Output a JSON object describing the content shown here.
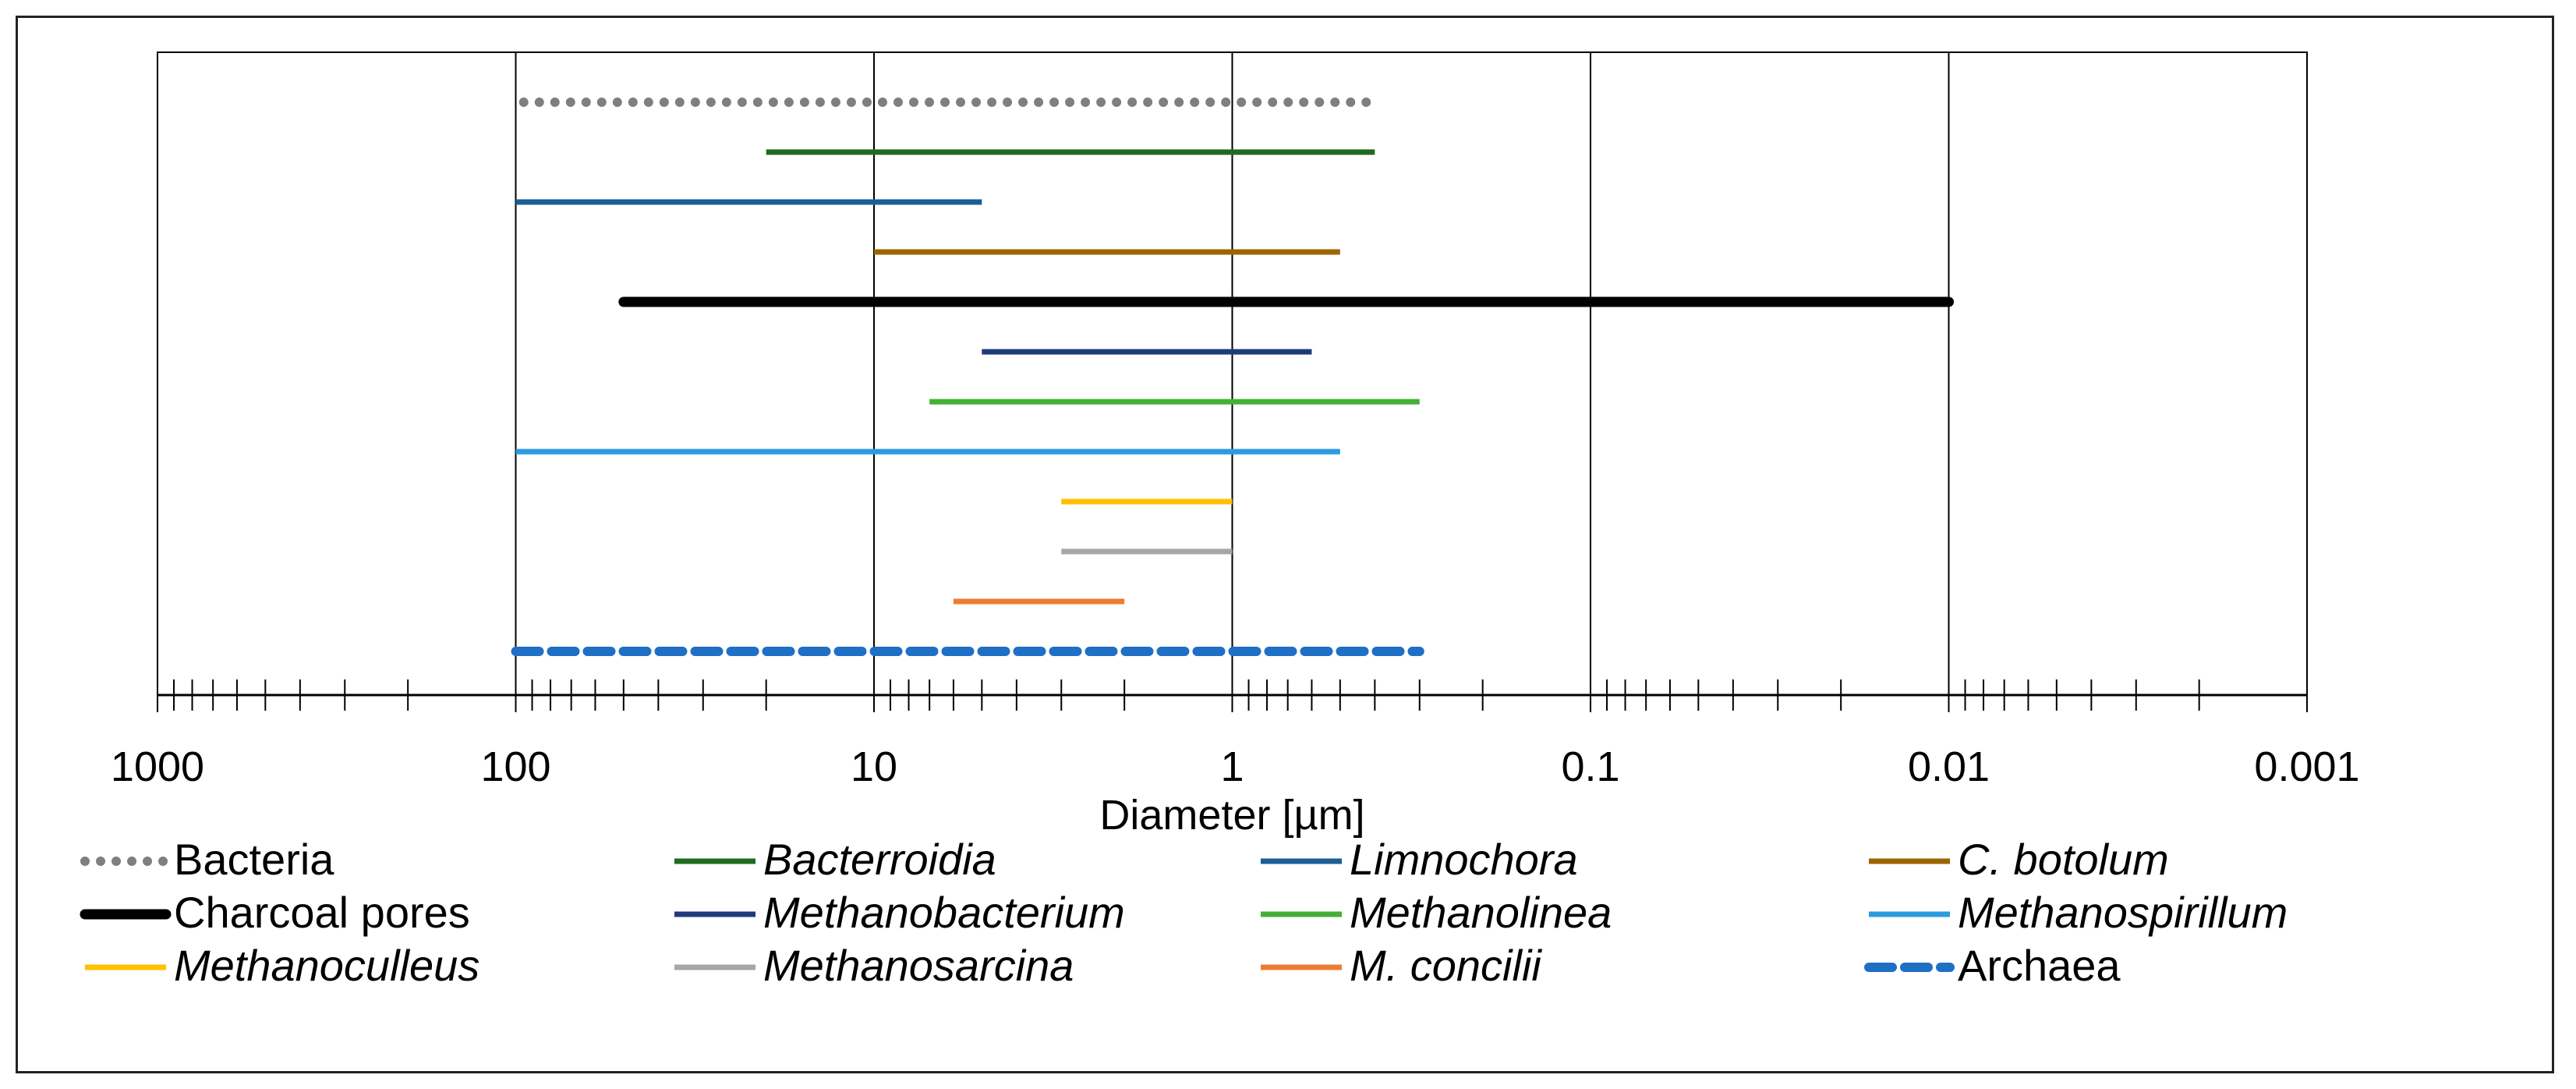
{
  "chart_data": {
    "type": "range",
    "xlabel": "Diameter [µm]",
    "x_scale": "log",
    "x_reversed": true,
    "xlim": [
      1000,
      0.001
    ],
    "major_ticks": [
      1000,
      100,
      10,
      1,
      0.1,
      0.01,
      0.001
    ],
    "tick_labels": [
      "1000",
      "100",
      "10",
      "1",
      "0.1",
      "0.01",
      "0.001"
    ],
    "grid": "vertical major",
    "legend_position": "bottom",
    "series": [
      {
        "name": "Bacteria",
        "italic": false,
        "color": "#7f7f7f",
        "style": "dotted",
        "min": 0.4,
        "max": 95
      },
      {
        "name": "Bacterroidia",
        "italic": true,
        "color": "#1f6b1f",
        "style": "solid",
        "min": 0.4,
        "max": 20
      },
      {
        "name": "Limnochora",
        "italic": true,
        "color": "#1a5e96",
        "style": "solid",
        "min": 5,
        "max": 100
      },
      {
        "name": "C. botolum",
        "italic": true,
        "color": "#9c6500",
        "style": "solid",
        "min": 0.5,
        "max": 10
      },
      {
        "name": "Charcoal pores",
        "italic": false,
        "color": "#000000",
        "style": "thick",
        "min": 0.01,
        "max": 50
      },
      {
        "name": "Methanobacterium",
        "italic": true,
        "color": "#1f3a78",
        "style": "solid",
        "min": 0.6,
        "max": 5
      },
      {
        "name": "Methanolinea",
        "italic": true,
        "color": "#45b036",
        "style": "solid",
        "min": 0.3,
        "max": 7
      },
      {
        "name": "Methanospirillum",
        "italic": true,
        "color": "#2a9be0",
        "style": "solid",
        "min": 0.5,
        "max": 100
      },
      {
        "name": "Methanoculleus",
        "italic": true,
        "color": "#ffc000",
        "style": "solid",
        "min": 1,
        "max": 3
      },
      {
        "name": "Methanosarcina",
        "italic": true,
        "color": "#a6a6a6",
        "style": "solid",
        "min": 1,
        "max": 3
      },
      {
        "name": "M. concilii",
        "italic": true,
        "color": "#ed7d31",
        "style": "solid",
        "min": 2,
        "max": 6
      },
      {
        "name": "Archaea",
        "italic": false,
        "color": "#1f6fc5",
        "style": "dashed",
        "min": 0.3,
        "max": 100
      }
    ]
  }
}
